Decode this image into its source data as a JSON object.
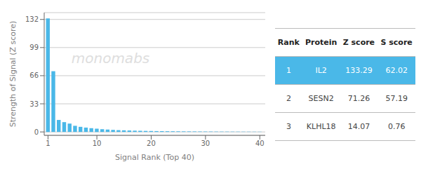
{
  "chart_data": {
    "type": "bar",
    "xlabel": "Signal Rank (Top 40)",
    "ylabel": "Strength of Signal (Z score)",
    "x": [
      1,
      2,
      3,
      4,
      5,
      6,
      7,
      8,
      9,
      10,
      11,
      12,
      13,
      14,
      15,
      16,
      17,
      18,
      19,
      20,
      21,
      22,
      23,
      24,
      25,
      26,
      27,
      28,
      29,
      30,
      31,
      32,
      33,
      34,
      35,
      36,
      37,
      38,
      39,
      40
    ],
    "values": [
      133.29,
      71.26,
      14.07,
      11.5,
      9.8,
      7.2,
      6.0,
      5.1,
      4.4,
      3.8,
      3.2,
      2.8,
      2.4,
      2.1,
      1.9,
      1.7,
      1.5,
      1.35,
      1.2,
      1.1,
      1.0,
      0.92,
      0.84,
      0.78,
      0.72,
      0.66,
      0.62,
      0.58,
      0.54,
      0.5,
      0.47,
      0.44,
      0.41,
      0.39,
      0.37,
      0.35,
      0.33,
      0.31,
      0.29,
      0.27
    ],
    "color": "#4ab8e8",
    "xlim": [
      0.3,
      41
    ],
    "ylim": [
      -4,
      140
    ],
    "xticks": [
      1,
      10,
      20,
      30,
      40
    ],
    "yticks": [
      0,
      33,
      66,
      99,
      132
    ],
    "grid": true,
    "annotations": [
      {
        "text": "monomabs",
        "color": "#dedede"
      }
    ],
    "table": {
      "columns": [
        "Rank",
        "Protein",
        "Z score",
        "S score"
      ],
      "rows": [
        {
          "values": [
            1,
            "IL2",
            133.29,
            62.02
          ],
          "color": "#4ab8e8"
        },
        {
          "values": [
            2,
            "SESN2",
            71.26,
            57.19
          ]
        },
        {
          "values": [
            3,
            "KLHL18",
            14.07,
            0.76
          ]
        }
      ]
    }
  }
}
